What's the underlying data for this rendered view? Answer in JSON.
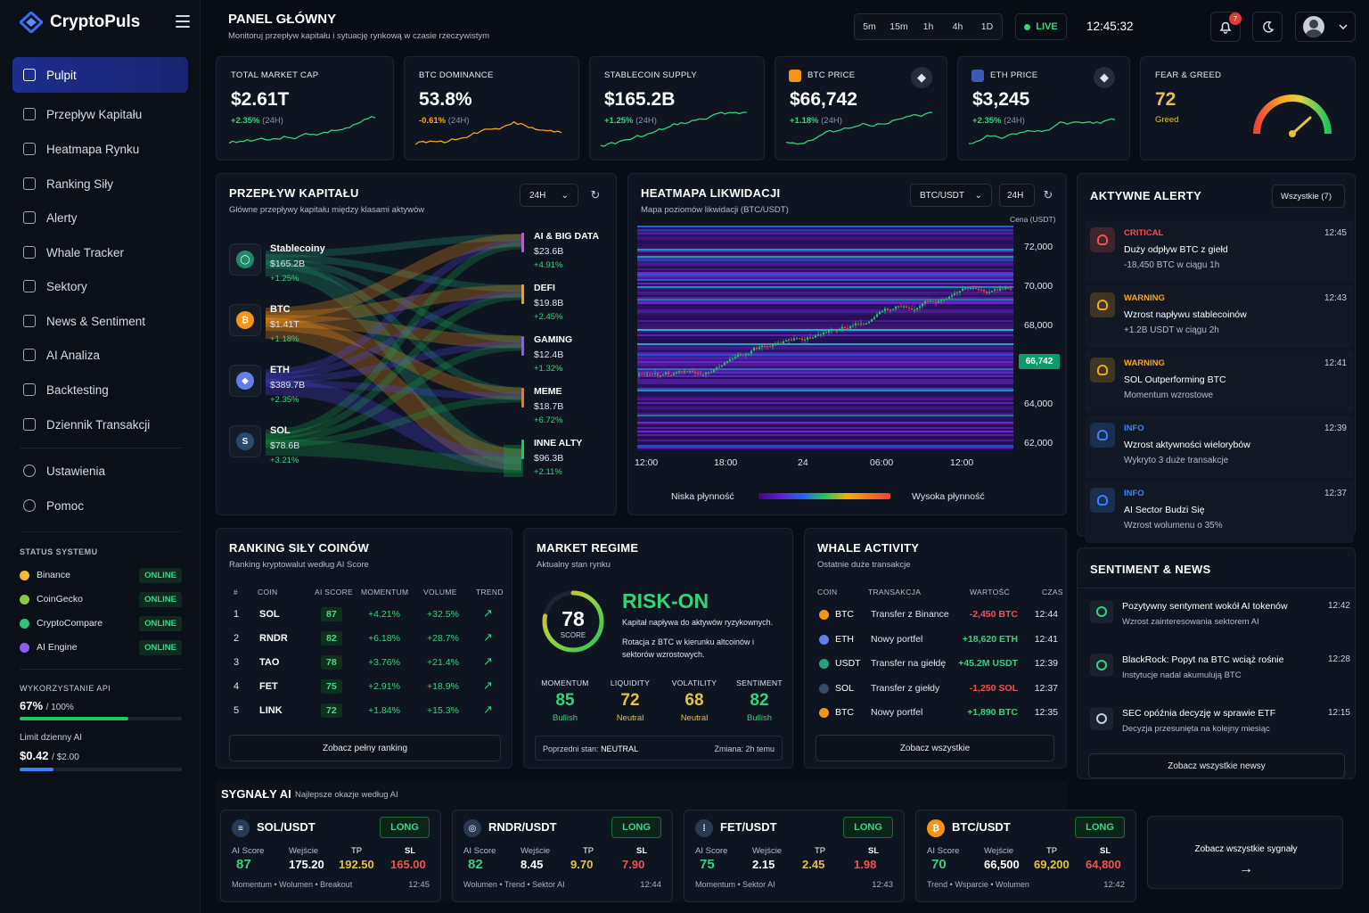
{
  "app": {
    "name": "CryptoPuls"
  },
  "sidebar": {
    "items": [
      {
        "label": "Pulpit",
        "active": true
      },
      {
        "label": "Przepływ Kapitału"
      },
      {
        "label": "Heatmapa Rynku"
      },
      {
        "label": "Ranking Siły"
      },
      {
        "label": "Alerty"
      },
      {
        "label": "Whale Tracker"
      },
      {
        "label": "Sektory"
      },
      {
        "label": "News & Sentiment"
      },
      {
        "label": "AI Analiza"
      },
      {
        "label": "Backtesting"
      },
      {
        "label": "Dziennik Transakcji"
      }
    ],
    "bottom_items": [
      {
        "label": "Ustawienia"
      },
      {
        "label": "Pomoc"
      }
    ],
    "status_title": "STATUS SYSTEMU",
    "status": [
      {
        "name": "Binance",
        "state": "ONLINE",
        "color": "#f3ba2f"
      },
      {
        "name": "CoinGecko",
        "state": "ONLINE",
        "color": "#8dc63f"
      },
      {
        "name": "CryptoCompare",
        "state": "ONLINE",
        "color": "#2ec27e"
      },
      {
        "name": "AI Engine",
        "state": "ONLINE",
        "color": "#8b5cf6"
      }
    ],
    "api_title": "WYKORZYSTANIE API",
    "api_value": "67%",
    "api_total": "/ 100%",
    "api_fraction": 0.67,
    "limit_title": "Limit dzienny AI",
    "limit_value": "$0.42",
    "limit_total": "/ $2.00",
    "limit_fraction": 0.21
  },
  "header": {
    "title": "PANEL GŁÓWNY",
    "subtitle": "Monitoruj przepływ kapitału i sytuację rynkową w czasie rzeczywistym",
    "timeframes": [
      "5m",
      "15m",
      "1h",
      "4h",
      "1D"
    ],
    "live": "LIVE",
    "clock": "12:45:32",
    "notifications": "7"
  },
  "stats": [
    {
      "label": "TOTAL MARKET CAP",
      "value": "$2.61T",
      "change": "+2.35%",
      "period": "(24H)",
      "color": "#36d27a"
    },
    {
      "label": "BTC DOMINANCE",
      "value": "53.8%",
      "change": "-0.61%",
      "period": "(24H)",
      "color": "#f5a524"
    },
    {
      "label": "STABLECOIN SUPPLY",
      "value": "$165.2B",
      "change": "+1.25%",
      "period": "(24H)",
      "color": "#36d27a"
    },
    {
      "label": "BTC PRICE",
      "value": "$66,742",
      "change": "+1.18%",
      "period": "(24H)",
      "color": "#36d27a"
    },
    {
      "label": "ETH PRICE",
      "value": "$3,245",
      "change": "+2.35%",
      "period": "(24H)",
      "color": "#36d27a"
    }
  ],
  "fear_greed": {
    "label": "FEAR & GREED",
    "value": "72",
    "state": "Greed"
  },
  "capital_flow": {
    "title": "PRZEPŁYW KAPITAŁU",
    "subtitle": "Główne przepływy kapitału między klasami aktywów",
    "period": "24H",
    "sources": [
      {
        "name": "Stablecoiny",
        "value": "$165.2B",
        "change": "+1.25%",
        "color": "#1f8a6a",
        "glyph": "◯"
      },
      {
        "name": "BTC",
        "value": "$1.41T",
        "change": "+1.18%",
        "color": "#f7931a",
        "glyph": "₿"
      },
      {
        "name": "ETH",
        "value": "$389.7B",
        "change": "+2.35%",
        "color": "#627eea",
        "glyph": "◆"
      },
      {
        "name": "SOL",
        "value": "$78.6B",
        "change": "+3.21%",
        "color": "#2a4a6a",
        "glyph": "S"
      }
    ],
    "targets": [
      {
        "name": "AI & BIG DATA",
        "value": "$23.6B",
        "change": "+4.91%",
        "color": "#d946ef"
      },
      {
        "name": "DEFI",
        "value": "$19.8B",
        "change": "+2.45%",
        "color": "#f59e0b"
      },
      {
        "name": "GAMING",
        "value": "$12.4B",
        "change": "+1.32%",
        "color": "#8b5cf6"
      },
      {
        "name": "MEME",
        "value": "$18.7B",
        "change": "+6.72%",
        "color": "#f97316"
      },
      {
        "name": "INNE ALTY",
        "value": "$96.3B",
        "change": "+2.11%",
        "color": "#22c55e"
      }
    ]
  },
  "heatmap": {
    "title": "HEATMAPA LIKWIDACJI",
    "subtitle": "Mapa poziomów likwidacji (BTC/USDT)",
    "pair": "BTC/USDT",
    "period": "24H",
    "axis_title": "Cena (USDT)",
    "price_labels": [
      "72,000",
      "70,000",
      "68,000",
      "64,000",
      "62,000"
    ],
    "current_price": "66,742",
    "time_labels": [
      "12:00",
      "18:00",
      "24",
      "06:00",
      "12:00"
    ],
    "low_label": "Niska płynność",
    "high_label": "Wysoka płynność"
  },
  "alerts": {
    "title": "AKTYWNE ALERTY",
    "filter": "Wszystkie (7)",
    "items": [
      {
        "level": "CRITICAL",
        "title": "Duży odpływ BTC z giełd",
        "desc": "-18,450 BTC w ciągu 1h",
        "time": "12:45",
        "color": "#f05252"
      },
      {
        "level": "WARNING",
        "title": "Wzrost napływu stablecoinów",
        "desc": "+1.2B USDT w ciągu 2h",
        "time": "12:43",
        "color": "#f5a524"
      },
      {
        "level": "WARNING",
        "title": "SOL Outperforming BTC",
        "desc": "Momentum wzrostowe",
        "time": "12:41",
        "color": "#f5a524"
      },
      {
        "level": "INFO",
        "title": "Wzrost aktywności wielorybów",
        "desc": "Wykryto 3 duże transakcje",
        "time": "12:39",
        "color": "#3b82f6"
      },
      {
        "level": "INFO",
        "title": "AI Sector Budzi Się",
        "desc": "Wzrost wolumenu o 35%",
        "time": "12:37",
        "color": "#3b82f6"
      }
    ]
  },
  "ranking": {
    "title": "RANKING SIŁY COINÓW",
    "subtitle": "Ranking kryptowalut według AI Score",
    "headers": [
      "#",
      "COIN",
      "AI SCORE",
      "MOMENTUM",
      "VOLUME",
      "TREND"
    ],
    "rows": [
      {
        "rank": "1",
        "coin": "SOL",
        "score": "87",
        "momentum": "+4.21%",
        "volume": "+32.5%"
      },
      {
        "rank": "2",
        "coin": "RNDR",
        "score": "82",
        "momentum": "+6.18%",
        "volume": "+28.7%"
      },
      {
        "rank": "3",
        "coin": "TAO",
        "score": "78",
        "momentum": "+3.76%",
        "volume": "+21.4%"
      },
      {
        "rank": "4",
        "coin": "FET",
        "score": "75",
        "momentum": "+2.91%",
        "volume": "+18.9%"
      },
      {
        "rank": "5",
        "coin": "LINK",
        "score": "72",
        "momentum": "+1.84%",
        "volume": "+15.3%"
      }
    ],
    "button": "Zobacz pełny ranking"
  },
  "regime": {
    "title": "MARKET REGIME",
    "subtitle": "Aktualny stan rynku",
    "score": "78",
    "score_label": "SCORE",
    "state": "RISK-ON",
    "desc1": "Kapitał napływa do aktywów ryzykownych.",
    "desc2": "Rotacja z BTC w kierunku altcoinów i sektorów wzrostowych.",
    "metrics": [
      {
        "label": "MOMENTUM",
        "value": "85",
        "state": "Bullish",
        "color": "#36d27a"
      },
      {
        "label": "LIQUIDITY",
        "value": "72",
        "state": "Neutral",
        "color": "#e3c340"
      },
      {
        "label": "VOLATILITY",
        "value": "68",
        "state": "Neutral",
        "color": "#e3c340"
      },
      {
        "label": "SENTIMENT",
        "value": "82",
        "state": "Bullish",
        "color": "#36d27a"
      }
    ],
    "prev_label": "Poprzedni stan:",
    "prev_value": "NEUTRAL",
    "change": "Zmiana: 2h temu"
  },
  "whales": {
    "title": "WHALE ACTIVITY",
    "subtitle": "Ostatnie duże transakcje",
    "headers": [
      "COIN",
      "TRANSAKCJA",
      "WARTOŚĆ",
      "CZAS"
    ],
    "rows": [
      {
        "coin": "BTC",
        "tx": "Transfer z Binance",
        "value": "-2,450 BTC",
        "time": "12:44",
        "positive": false,
        "color": "#f7931a"
      },
      {
        "coin": "ETH",
        "tx": "Nowy portfel",
        "value": "+18,620 ETH",
        "time": "12:41",
        "positive": true,
        "color": "#627eea"
      },
      {
        "coin": "USDT",
        "tx": "Transfer na giełdę",
        "value": "+45.2M USDT",
        "time": "12:39",
        "positive": true,
        "color": "#26a17b"
      },
      {
        "coin": "SOL",
        "tx": "Transfer z giełdy",
        "value": "-1,250 SOL",
        "time": "12:37",
        "positive": false,
        "color": "#3a4a60"
      },
      {
        "coin": "BTC",
        "tx": "Nowy portfel",
        "value": "+1,890 BTC",
        "time": "12:35",
        "positive": true,
        "color": "#f7931a"
      }
    ],
    "button": "Zobacz wszystkie"
  },
  "news": {
    "title": "SENTIMENT & NEWS",
    "items": [
      {
        "title": "Pozytywny sentyment wokół AI tokenów",
        "desc": "Wzrost zainteresowania sektorem AI",
        "time": "12:42",
        "color": "#36d27a"
      },
      {
        "title": "BlackRock: Popyt na BTC wciąż rośnie",
        "desc": "Instytucje nadal akumulują BTC",
        "time": "12:28",
        "color": "#36d27a"
      },
      {
        "title": "SEC opóźnia decyzję w sprawie ETF",
        "desc": "Decyzja przesunięta na kolejny miesiąc",
        "time": "12:15",
        "color": "#c8cedb"
      }
    ],
    "button": "Zobacz wszystkie newsy"
  },
  "signals": {
    "title": "SYGNAŁY AI",
    "subtitle": "Najlepsze okazje według AI",
    "labels": {
      "score": "AI Score",
      "entry": "Wejście",
      "tp": "TP",
      "sl": "SL"
    },
    "items": [
      {
        "pair": "SOL/USDT",
        "side": "LONG",
        "score": "87",
        "entry": "175.20",
        "tp": "192.50",
        "sl": "165.00",
        "tags": "Momentum • Wolumen • Breakout",
        "time": "12:45",
        "color": "#2a3a52",
        "glyph": "≡"
      },
      {
        "pair": "RNDR/USDT",
        "side": "LONG",
        "score": "82",
        "entry": "8.45",
        "tp": "9.70",
        "sl": "7.90",
        "tags": "Wolumen • Trend • Sektor AI",
        "time": "12:44",
        "color": "#2a3a52",
        "glyph": "◎"
      },
      {
        "pair": "FET/USDT",
        "side": "LONG",
        "score": "75",
        "entry": "2.15",
        "tp": "2.45",
        "sl": "1.98",
        "tags": "Momentum • Sektor AI",
        "time": "12:43",
        "color": "#2a3a52",
        "glyph": "⁞"
      },
      {
        "pair": "BTC/USDT",
        "side": "LONG",
        "score": "70",
        "entry": "66,500",
        "tp": "69,200",
        "sl": "64,800",
        "tags": "Trend • Wsparcie • Wolumen",
        "time": "12:42",
        "color": "#f7931a",
        "glyph": "₿"
      }
    ],
    "all_button": "Zobacz wszystkie sygnały"
  }
}
